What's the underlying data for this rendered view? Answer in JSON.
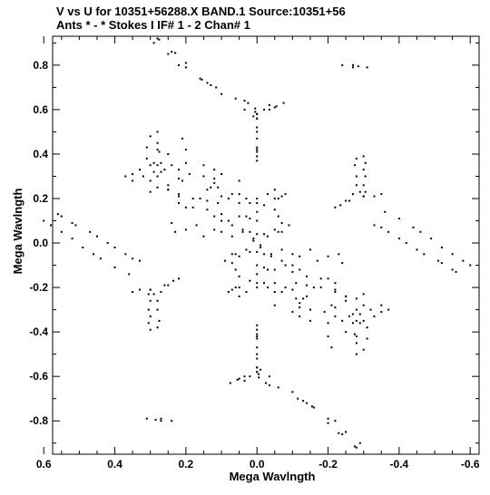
{
  "chart_data": {
    "type": "scatter",
    "title": "V vs U for 10351+56288.X BAND.1   Source:10351+56",
    "subtitle": "Ants * - *     Stokes I   IF# 1 - 2   Chan# 1",
    "xlabel": "Mega Wavlngth",
    "ylabel": "Mega Wavlngth",
    "xlim": [
      0.575,
      -0.625
    ],
    "ylim": [
      -0.95,
      0.93
    ],
    "x_ticks": [
      0.6,
      0.4,
      0.2,
      0.0,
      -0.2,
      -0.4,
      -0.6
    ],
    "x_tick_labels": [
      "0.6",
      "0.4",
      "0.2",
      "0.0",
      "-0.2",
      "-0.4",
      "-0.6"
    ],
    "y_ticks": [
      0.8,
      0.6,
      0.4,
      0.2,
      0.0,
      -0.2,
      -0.4,
      -0.6,
      -0.8
    ],
    "y_tick_labels": [
      "0.8",
      "0.6",
      "0.4",
      "0.2",
      "0.0",
      "-0.2",
      "-0.4",
      "-0.6",
      "-0.8"
    ],
    "grid": false,
    "point_color": "#000000",
    "series": [
      {
        "values": [
          [
            0.28,
            0.92
          ],
          [
            0.275,
            0.915
          ],
          [
            0.24,
            0.86
          ],
          [
            0.23,
            0.855
          ],
          [
            0.2,
            0.81
          ],
          [
            0.16,
            0.74
          ],
          [
            0.155,
            0.735
          ],
          [
            0.13,
            0.71
          ],
          [
            0.115,
            0.7
          ],
          [
            0.06,
            0.65
          ],
          [
            0.035,
            0.64
          ],
          [
            0.025,
            0.63
          ],
          [
            0.005,
            0.605
          ],
          [
            -0.035,
            0.6
          ],
          [
            -0.055,
            0.615
          ],
          [
            -0.075,
            0.63
          ],
          [
            0.005,
            0.59
          ],
          [
            0.0,
            0.58
          ],
          [
            0.0,
            0.56
          ],
          [
            0.0,
            0.52
          ],
          [
            0.0,
            0.43
          ],
          [
            0.0,
            0.41
          ],
          [
            0.0,
            0.39
          ],
          [
            -0.27,
            0.8
          ],
          [
            -0.285,
            0.795
          ],
          [
            -0.31,
            0.79
          ],
          [
            -0.3,
            0.39
          ],
          [
            -0.305,
            0.36
          ],
          [
            -0.3,
            0.33
          ],
          [
            -0.305,
            0.3
          ],
          [
            -0.3,
            0.26
          ],
          [
            -0.305,
            0.23
          ],
          [
            -0.3,
            0.21
          ],
          [
            -0.26,
            0.19
          ],
          [
            -0.235,
            0.17
          ],
          [
            -0.33,
            0.21
          ],
          [
            -0.35,
            0.22
          ],
          [
            -0.36,
            0.14
          ],
          [
            -0.4,
            0.11
          ],
          [
            -0.44,
            0.07
          ],
          [
            -0.46,
            0.05
          ],
          [
            -0.49,
            0.02
          ],
          [
            -0.52,
            -0.02
          ],
          [
            -0.55,
            -0.05
          ],
          [
            -0.58,
            -0.08
          ],
          [
            -0.6,
            -0.1
          ],
          [
            0.56,
            0.13
          ],
          [
            0.55,
            0.12
          ],
          [
            0.52,
            0.09
          ],
          [
            0.51,
            0.08
          ],
          [
            0.47,
            0.05
          ],
          [
            0.45,
            0.03
          ],
          [
            0.42,
            0.0
          ],
          [
            0.4,
            -0.02
          ],
          [
            0.37,
            -0.05
          ],
          [
            0.35,
            -0.07
          ],
          [
            0.33,
            -0.08
          ],
          [
            0.3,
            -0.21
          ],
          [
            0.29,
            -0.23
          ],
          [
            0.27,
            -0.22
          ],
          [
            0.25,
            -0.19
          ],
          [
            0.22,
            -0.16
          ],
          [
            0.28,
            -0.26
          ],
          [
            0.28,
            -0.3
          ],
          [
            0.275,
            -0.35
          ],
          [
            0.28,
            -0.38
          ],
          [
            0.05,
            -0.61
          ],
          [
            0.035,
            -0.62
          ],
          [
            0.02,
            -0.6
          ],
          [
            0.0,
            -0.58
          ],
          [
            -0.01,
            -0.57
          ],
          [
            -0.035,
            -0.6
          ],
          [
            0.0,
            -0.56
          ],
          [
            0.0,
            -0.5
          ],
          [
            0.0,
            -0.47
          ],
          [
            0.0,
            -0.42
          ],
          [
            0.0,
            -0.37
          ],
          [
            -0.1,
            -0.67
          ],
          [
            -0.14,
            -0.72
          ],
          [
            -0.2,
            -0.79
          ],
          [
            -0.22,
            -0.8
          ],
          [
            -0.25,
            -0.85
          ],
          [
            -0.29,
            -0.9
          ],
          [
            0.27,
            -0.79
          ],
          [
            0.24,
            -0.8
          ],
          [
            0.28,
            0.5
          ],
          [
            0.28,
            0.45
          ],
          [
            0.275,
            0.41
          ],
          [
            0.28,
            0.35
          ],
          [
            0.27,
            0.32
          ],
          [
            0.29,
            0.36
          ],
          [
            0.35,
            0.28
          ],
          [
            0.32,
            0.3
          ],
          [
            0.29,
            0.32
          ],
          [
            0.26,
            0.33
          ],
          [
            0.3,
            0.23
          ],
          [
            0.25,
            0.26
          ],
          [
            0.21,
            0.28
          ],
          [
            0.19,
            0.31
          ],
          [
            0.2,
            0.36
          ],
          [
            0.2,
            0.42
          ],
          [
            0.21,
            0.47
          ],
          [
            0.25,
            0.24
          ],
          [
            0.22,
            0.22
          ],
          [
            0.18,
            0.2
          ],
          [
            0.14,
            0.24
          ],
          [
            0.11,
            0.25
          ],
          [
            0.07,
            0.22
          ],
          [
            0.22,
            0.18
          ],
          [
            0.18,
            0.16
          ],
          [
            0.14,
            0.19
          ],
          [
            0.11,
            0.18
          ],
          [
            0.08,
            0.2
          ],
          [
            0.12,
            0.12
          ],
          [
            0.1,
            0.1
          ],
          [
            0.07,
            0.08
          ],
          [
            0.04,
            0.06
          ],
          [
            0.02,
            0.05
          ],
          [
            0.15,
            0.3
          ],
          [
            0.15,
            0.35
          ],
          [
            0.12,
            0.27
          ],
          [
            0.12,
            0.33
          ],
          [
            0.1,
            0.31
          ],
          [
            0.05,
            0.22
          ],
          [
            0.05,
            0.18
          ],
          [
            0.03,
            0.2
          ],
          [
            0.0,
            0.18
          ],
          [
            0.0,
            0.14
          ],
          [
            0.0,
            0.1
          ],
          [
            -0.02,
            0.17
          ],
          [
            -0.05,
            0.2
          ],
          [
            -0.07,
            0.21
          ],
          [
            -0.08,
            0.22
          ],
          [
            0.0,
            0.04
          ],
          [
            0.01,
            0.01
          ],
          [
            -0.01,
            -0.02
          ],
          [
            0.02,
            -0.04
          ],
          [
            0.05,
            -0.06
          ],
          [
            0.07,
            -0.09
          ],
          [
            -0.03,
            0.03
          ],
          [
            -0.06,
            0.05
          ],
          [
            -0.09,
            0.08
          ],
          [
            0.07,
            -0.05
          ],
          [
            0.06,
            -0.12
          ],
          [
            0.06,
            -0.2
          ],
          [
            0.05,
            -0.24
          ],
          [
            0.03,
            -0.22
          ],
          [
            0.0,
            -0.2
          ],
          [
            -0.02,
            -0.18
          ],
          [
            -0.02,
            -0.11
          ],
          [
            -0.04,
            -0.05
          ],
          [
            -0.07,
            -0.03
          ],
          [
            -0.05,
            -0.12
          ],
          [
            -0.08,
            -0.1
          ],
          [
            -0.1,
            -0.13
          ],
          [
            -0.12,
            -0.06
          ],
          [
            -0.14,
            -0.15
          ],
          [
            -0.17,
            -0.08
          ],
          [
            -0.2,
            -0.06
          ],
          [
            -0.23,
            -0.05
          ],
          [
            -0.24,
            -0.09
          ],
          [
            -0.2,
            -0.16
          ],
          [
            -0.22,
            -0.21
          ],
          [
            -0.25,
            -0.24
          ],
          [
            -0.28,
            -0.25
          ],
          [
            -0.3,
            -0.28
          ],
          [
            -0.22,
            -0.29
          ],
          [
            -0.22,
            -0.33
          ],
          [
            -0.24,
            -0.35
          ],
          [
            -0.25,
            -0.4
          ],
          [
            -0.28,
            -0.3
          ],
          [
            -0.27,
            -0.36
          ],
          [
            -0.28,
            -0.42
          ],
          [
            -0.3,
            -0.35
          ],
          [
            -0.31,
            -0.38
          ],
          [
            -0.33,
            -0.33
          ],
          [
            -0.35,
            -0.31
          ],
          [
            -0.37,
            -0.3
          ],
          [
            -0.31,
            -0.43
          ],
          [
            -0.3,
            -0.48
          ],
          [
            -0.16,
            -0.2
          ],
          [
            -0.13,
            -0.25
          ],
          [
            -0.12,
            -0.29
          ],
          [
            -0.1,
            -0.21
          ],
          [
            -0.05,
            -0.28
          ],
          [
            -0.1,
            -0.05
          ],
          [
            -0.15,
            -0.03
          ],
          [
            -0.05,
            0.15
          ],
          [
            0.03,
            0.12
          ]
        ]
      }
    ]
  }
}
